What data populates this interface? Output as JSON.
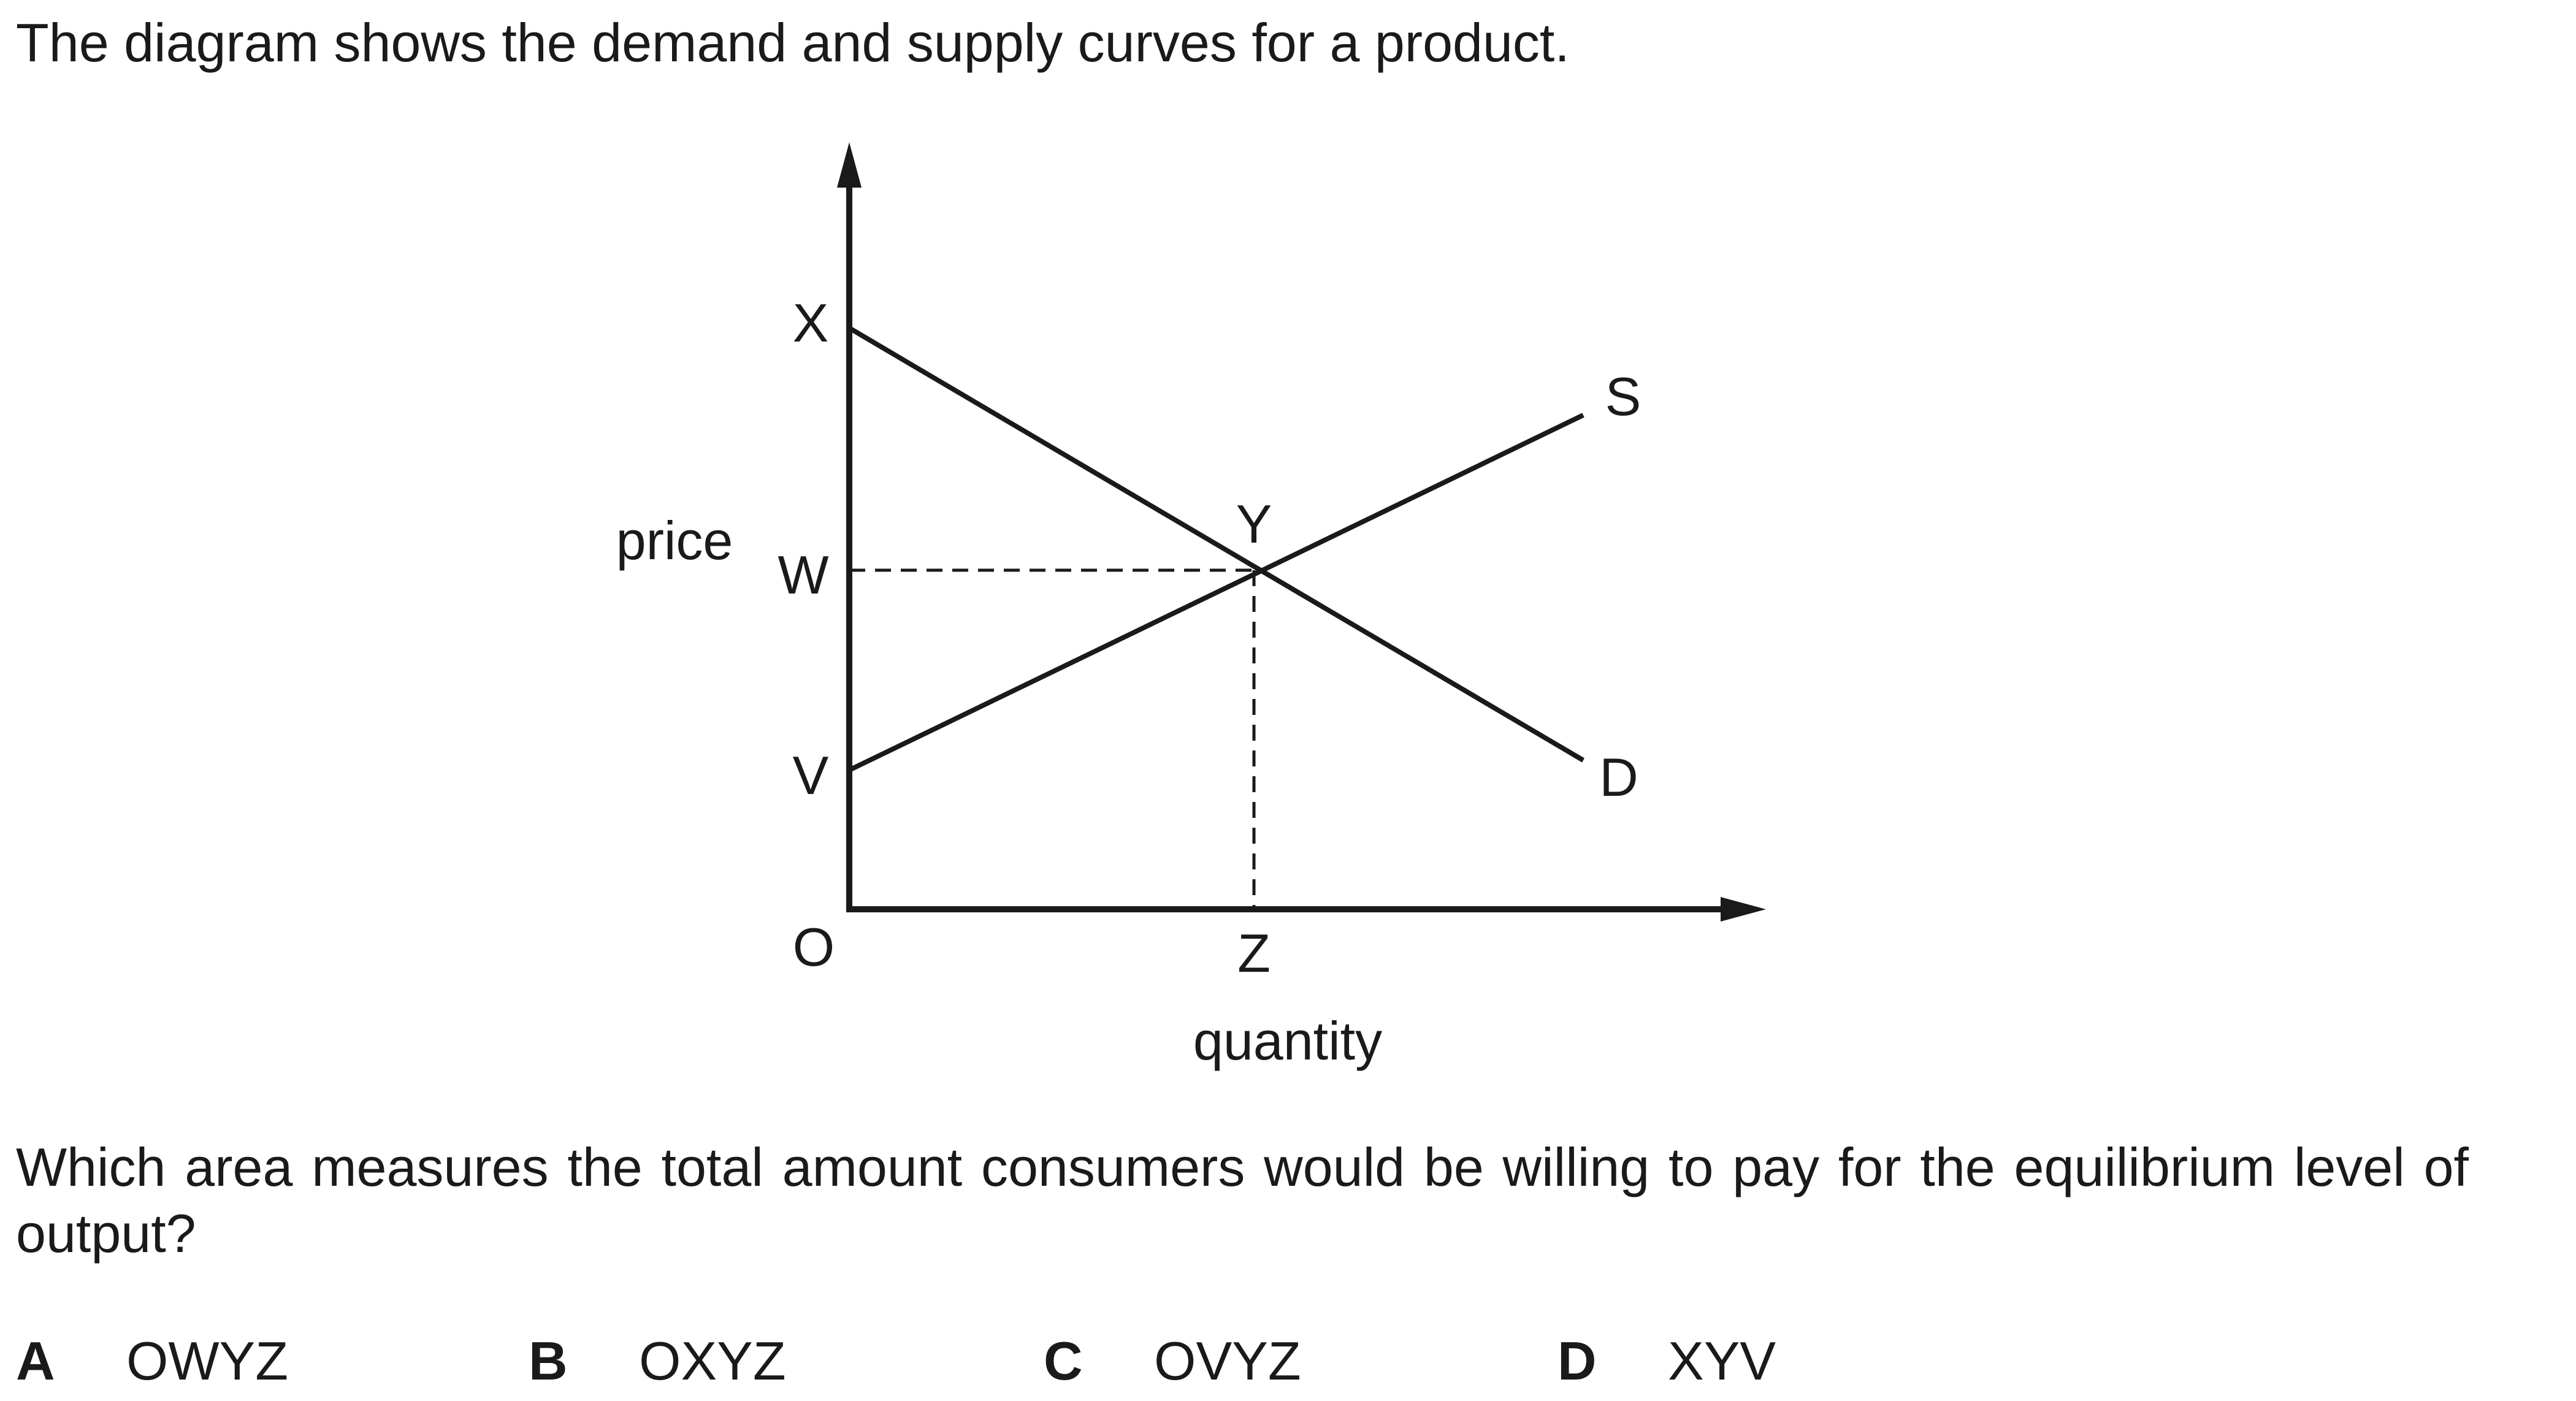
{
  "intro_text": "The diagram shows the demand and supply curves for a product.",
  "diagram": {
    "y_axis_label": "price",
    "x_axis_label": "quantity",
    "origin_label": "O",
    "point_x": "X",
    "point_w": "W",
    "point_v": "V",
    "point_y": "Y",
    "point_z": "Z",
    "supply_label": "S",
    "demand_label": "D"
  },
  "question_text": "Which area measures the total amount consumers would be willing to pay for the equilibrium level of output?",
  "options": [
    {
      "letter": "A",
      "text": "OWYZ"
    },
    {
      "letter": "B",
      "text": "OXYZ"
    },
    {
      "letter": "C",
      "text": "OVYZ"
    },
    {
      "letter": "D",
      "text": "XYV"
    }
  ],
  "colors": {
    "ink": "#1a1a1a",
    "background": "#ffffff"
  }
}
